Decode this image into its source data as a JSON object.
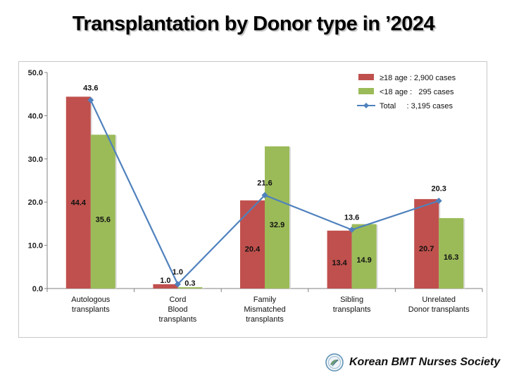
{
  "title": "Transplantation by Donor type in ’2024",
  "footer": {
    "org_name": "Korean BMT Nurses Society"
  },
  "chart_data": {
    "type": "bar",
    "categories": [
      [
        "Autologous",
        "transplants"
      ],
      [
        "Cord",
        "Blood",
        "transplants"
      ],
      [
        "Family",
        "Mismatched",
        "transplants"
      ],
      [
        "Sibling",
        "transplants"
      ],
      [
        "Unrelated",
        "Donor transplants"
      ]
    ],
    "series": [
      {
        "name": "≥18 age : 2,900 cases",
        "type": "bar",
        "color": "#c0504d",
        "values": [
          44.4,
          1.0,
          20.4,
          13.4,
          20.7
        ],
        "labels": [
          "44.4",
          "1.0",
          "20.4",
          "13.4",
          "20.7"
        ]
      },
      {
        "name": "<18 age :   295 cases",
        "type": "bar",
        "color": "#9bbb59",
        "values": [
          35.6,
          0.3,
          32.9,
          14.9,
          16.3
        ],
        "labels": [
          "35.6",
          "0.3",
          "32.9",
          "14.9",
          "16.3"
        ]
      },
      {
        "name": "Total     : 3,195 cases",
        "type": "line",
        "color": "#4f81bd",
        "values": [
          43.6,
          1.0,
          21.6,
          13.6,
          20.3
        ],
        "labels": [
          "43.6",
          "1.0",
          "21.6",
          "13.6",
          "20.3"
        ]
      }
    ],
    "ylim": [
      0,
      50
    ],
    "yticks": [
      "0.0",
      "10.0",
      "20.0",
      "30.0",
      "40.0",
      "50.0"
    ],
    "legend_position": "top-right",
    "grid": false
  }
}
